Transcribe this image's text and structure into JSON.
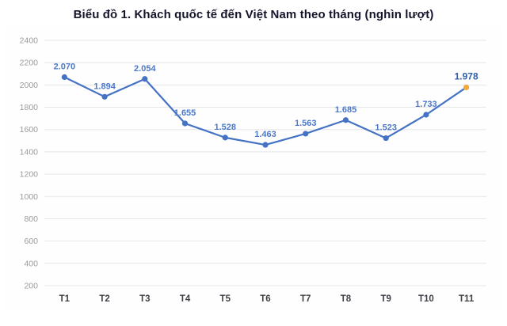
{
  "title": "Biểu đồ 1. Khách quốc tế đến Việt Nam theo tháng (nghìn lượt)",
  "chart_data": {
    "type": "line",
    "categories": [
      "T1",
      "T2",
      "T3",
      "T4",
      "T5",
      "T6",
      "T7",
      "T8",
      "T9",
      "T10",
      "T11"
    ],
    "values": [
      2070,
      1894,
      2054,
      1655,
      1528,
      1463,
      1563,
      1685,
      1523,
      1733,
      1978
    ],
    "value_labels": [
      "2.070",
      "1.894",
      "2.054",
      "1.655",
      "1.528",
      "1.463",
      "1.563",
      "1.685",
      "1.523",
      "1.733",
      "1.978"
    ],
    "highlight_index": 10,
    "ylim": [
      200,
      2400
    ],
    "yticks": [
      200,
      400,
      600,
      800,
      1000,
      1200,
      1400,
      1600,
      1800,
      2000,
      2200,
      2400
    ],
    "grid": true,
    "legend": "none",
    "colors": {
      "line": "#4472C4",
      "marker": "#4472C4",
      "highlight_marker": "#F2A93B",
      "label": "#4C78C8",
      "highlight_label": "#2E5FAE",
      "grid": "#E6E6E6",
      "ytick_text": "#9B9B9B",
      "xtick_text": "#3F3F46"
    }
  }
}
